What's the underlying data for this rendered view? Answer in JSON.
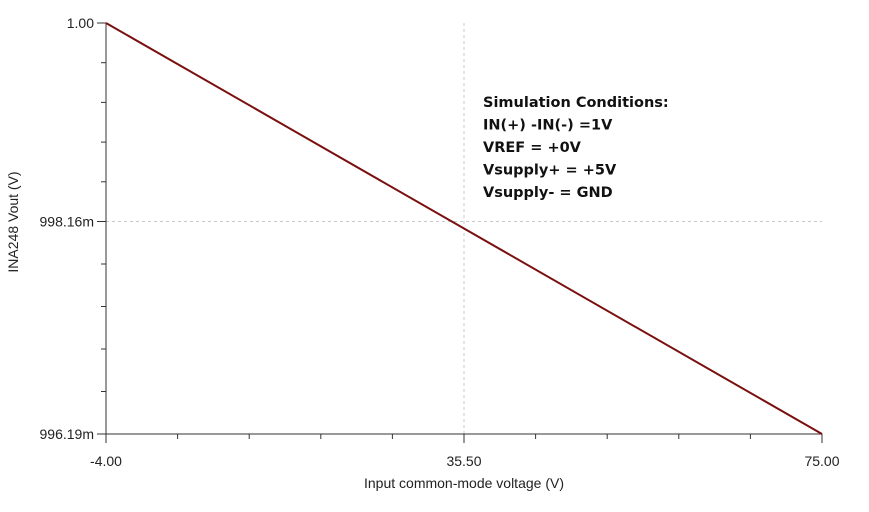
{
  "chart_data": {
    "type": "line",
    "title": "",
    "xlabel": "Input common-mode voltage (V)",
    "ylabel": "INA248 Vout (V)",
    "xlim": [
      -4.0,
      75.0
    ],
    "ylim": [
      0.99619,
      1.0
    ],
    "x_ticks": [
      {
        "value": -4.0,
        "label": "-4.00"
      },
      {
        "value": 35.5,
        "label": "35.50"
      },
      {
        "value": 75.0,
        "label": "75.00"
      }
    ],
    "y_ticks": [
      {
        "value": 1.0,
        "label": "1.00"
      },
      {
        "value": 0.99816,
        "label": "998.16m"
      },
      {
        "value": 0.99619,
        "label": "996.19m"
      }
    ],
    "grid": true,
    "series": [
      {
        "name": "",
        "color": "#7a0f0f",
        "x": [
          -4.0,
          75.0
        ],
        "y": [
          1.0,
          0.99619
        ]
      }
    ],
    "annotation": {
      "lines": [
        "Simulation Conditions:",
        "IN(+) -IN(-) =1V",
        "VREF = +0V",
        "Vsupply+ = +5V",
        "Vsupply- = GND"
      ]
    }
  },
  "colors": {
    "line": "#7a0f0f",
    "axis": "#333333",
    "grid": "#c8c8c8"
  }
}
